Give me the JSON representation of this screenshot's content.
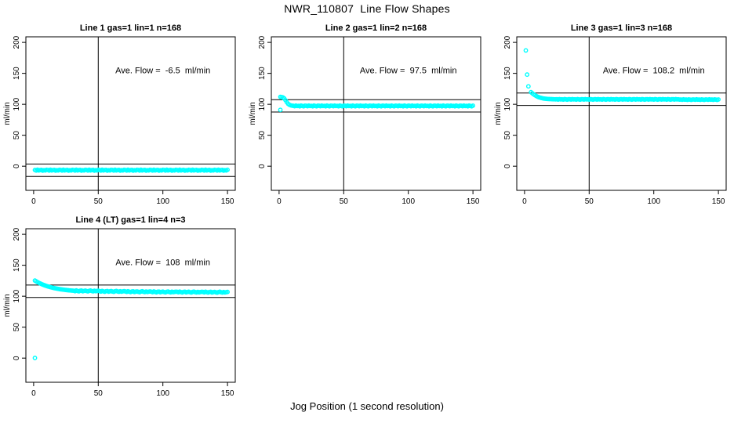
{
  "figure": {
    "title": "NWR_110807  Line Flow Shapes",
    "bottom_xlabel": "Jog Position (1 second resolution)",
    "point_color": "#00FFFF",
    "axis_color": "#000000",
    "background": "#FFFFFF"
  },
  "chart_data": [
    {
      "type": "scatter",
      "title": "Line 1 gas=1 lin=1 n=168",
      "annotation": "Ave. Flow =  -6.5  ml/min",
      "ave_flow_ml_min": -6.5,
      "gas": 1,
      "lin": 1,
      "n": 168,
      "ylabel": "ml/min",
      "xticks": [
        0,
        50,
        100,
        150
      ],
      "yticks": [
        0,
        50,
        100,
        150,
        200
      ],
      "xlim": [
        -6,
        156
      ],
      "ylim": [
        -39,
        209
      ],
      "grid": false,
      "vline_x": 50,
      "hlines": [
        3.5,
        -16.5
      ],
      "series": {
        "x_start": 1,
        "x_step": 1,
        "y": [
          -6.1,
          -7.0,
          -5.7,
          -6.8,
          -6.3,
          -5.9,
          -7.2,
          -6.4,
          -6.9,
          -5.8,
          -6.1,
          -7.0,
          -5.7,
          -6.8,
          -6.3,
          -5.9,
          -7.2,
          -6.4,
          -6.9,
          -5.8,
          -6.1,
          -7.0,
          -5.7,
          -6.8,
          -6.3,
          -5.9,
          -7.2,
          -6.4,
          -6.9,
          -5.8,
          -6.1,
          -7.0,
          -5.7,
          -6.8,
          -6.3,
          -5.9,
          -7.2,
          -6.4,
          -6.9,
          -5.8,
          -6.1,
          -7.0,
          -5.7,
          -6.8,
          -6.3,
          -5.9,
          -7.2,
          -6.4,
          -6.9,
          -5.8,
          -6.1,
          -7.0,
          -5.7,
          -6.8,
          -6.3,
          -5.9,
          -7.2,
          -6.4,
          -6.9,
          -5.8,
          -6.1,
          -7.0,
          -5.7,
          -6.8,
          -6.3,
          -5.9,
          -7.2,
          -6.4,
          -6.9,
          -5.8,
          -6.1,
          -7.0,
          -5.7,
          -6.8,
          -6.3,
          -5.9,
          -7.2,
          -6.4,
          -6.9,
          -5.8,
          -6.1,
          -7.0,
          -5.7,
          -6.8,
          -6.3,
          -5.9,
          -7.2,
          -6.4,
          -6.9,
          -5.8,
          -6.1,
          -7.0,
          -5.7,
          -6.8,
          -6.3,
          -5.9,
          -7.2,
          -6.4,
          -6.9,
          -5.8,
          -6.1,
          -7.0,
          -5.7,
          -6.8,
          -6.3,
          -5.9,
          -7.2,
          -6.4,
          -6.9,
          -5.8,
          -6.1,
          -7.0,
          -5.7,
          -6.8,
          -6.3,
          -5.9,
          -7.2,
          -6.4,
          -6.9,
          -5.8,
          -6.1,
          -7.0,
          -5.7,
          -6.8,
          -6.3,
          -5.9,
          -7.2,
          -6.4,
          -6.9,
          -5.8,
          -6.1,
          -7.0,
          -5.7,
          -6.8,
          -6.3,
          -5.9,
          -7.2,
          -6.4,
          -6.9,
          -5.8,
          -6.1,
          -7.0,
          -5.7,
          -6.8,
          -6.3,
          -5.9,
          -7.2,
          -6.4,
          -6.9,
          -5.8
        ]
      },
      "outliers": []
    },
    {
      "type": "scatter",
      "title": "Line 2 gas=1 lin=2 n=168",
      "annotation": "Ave. Flow =  97.5  ml/min",
      "ave_flow_ml_min": 97.5,
      "gas": 1,
      "lin": 2,
      "n": 168,
      "ylabel": "ml/min",
      "xticks": [
        0,
        50,
        100,
        150
      ],
      "yticks": [
        0,
        50,
        100,
        150,
        200
      ],
      "xlim": [
        -6,
        156
      ],
      "ylim": [
        -39,
        209
      ],
      "grid": false,
      "vline_x": 50,
      "hlines": [
        107.5,
        87.5
      ],
      "series": {
        "x_start": 1,
        "x_step": 1,
        "y": [
          112.0,
          111.7,
          111.0,
          109.5,
          106.5,
          103.2,
          100.8,
          99.2,
          98.3,
          97.8,
          97.6,
          96.9,
          97.9,
          97.2,
          97.5,
          96.8,
          98.0,
          97.3,
          96.7,
          97.8,
          97.6,
          96.9,
          97.9,
          97.2,
          97.5,
          96.8,
          98.0,
          97.3,
          96.7,
          97.8,
          97.6,
          96.9,
          97.9,
          97.2,
          97.5,
          96.8,
          98.0,
          97.3,
          96.7,
          97.8,
          97.6,
          96.9,
          97.9,
          97.2,
          97.5,
          96.8,
          98.0,
          97.3,
          96.7,
          97.8,
          97.6,
          96.9,
          97.9,
          97.2,
          97.5,
          96.8,
          98.0,
          97.3,
          96.7,
          97.8,
          97.6,
          96.9,
          97.9,
          97.2,
          97.5,
          96.8,
          98.0,
          97.3,
          96.7,
          97.8,
          97.6,
          96.9,
          97.9,
          97.2,
          97.5,
          96.8,
          98.0,
          97.3,
          96.7,
          97.8,
          97.6,
          96.9,
          97.9,
          97.2,
          97.5,
          96.8,
          98.0,
          97.3,
          96.7,
          97.8,
          97.6,
          96.9,
          97.9,
          97.2,
          97.5,
          96.8,
          98.0,
          97.3,
          96.7,
          97.8,
          97.6,
          96.9,
          97.9,
          97.2,
          97.5,
          96.8,
          98.0,
          97.3,
          96.7,
          97.8,
          97.6,
          96.9,
          97.9,
          97.2,
          97.5,
          96.8,
          98.0,
          97.3,
          96.7,
          97.8,
          97.6,
          96.9,
          97.9,
          97.2,
          97.5,
          96.8,
          98.0,
          97.3,
          96.7,
          97.8,
          97.6,
          96.9,
          97.9,
          97.2,
          97.5,
          96.8,
          98.0,
          97.3,
          96.7,
          97.8,
          97.6,
          96.9,
          97.9,
          97.2,
          97.5,
          96.8,
          98.0,
          97.3,
          96.7,
          97.8
        ]
      },
      "outliers": [
        [
          1,
          91
        ]
      ]
    },
    {
      "type": "scatter",
      "title": "Line 3 gas=1 lin=3 n=168",
      "annotation": "Ave. Flow =  108.2  ml/min",
      "ave_flow_ml_min": 108.2,
      "gas": 1,
      "lin": 3,
      "n": 168,
      "ylabel": "ml/min",
      "xticks": [
        0,
        50,
        100,
        150
      ],
      "yticks": [
        0,
        50,
        100,
        150,
        200
      ],
      "xlim": [
        -6,
        156
      ],
      "ylim": [
        -39,
        209
      ],
      "grid": false,
      "vline_x": 50,
      "hlines": [
        118.2,
        98.2
      ],
      "series": {
        "x_start": 5,
        "x_step": 1,
        "y": [
          119.6,
          117.8,
          116.2,
          114.8,
          113.5,
          112.4,
          111.5,
          110.8,
          110.2,
          109.7,
          109.3,
          109.0,
          108.8,
          108.6,
          108.5,
          108.4,
          108.3,
          108.2,
          108.1,
          108.0,
          108.2,
          107.7,
          108.4,
          107.9,
          108.1,
          107.6,
          108.3,
          108.0,
          107.5,
          108.2,
          108.2,
          107.7,
          108.4,
          107.9,
          108.1,
          107.6,
          108.3,
          108.0,
          107.5,
          108.2,
          108.2,
          107.7,
          108.4,
          107.9,
          108.1,
          107.6,
          108.3,
          108.0,
          107.5,
          108.2,
          108.2,
          107.7,
          108.4,
          107.9,
          108.1,
          107.6,
          108.3,
          108.0,
          107.5,
          108.2,
          108.2,
          107.7,
          108.4,
          107.9,
          108.1,
          107.6,
          108.3,
          108.0,
          107.5,
          108.2,
          108.2,
          107.7,
          108.4,
          107.9,
          108.1,
          107.6,
          108.3,
          108.0,
          107.5,
          108.2,
          108.2,
          107.7,
          108.4,
          107.9,
          108.1,
          107.6,
          108.3,
          108.0,
          107.5,
          108.2,
          108.2,
          107.7,
          108.4,
          107.9,
          108.1,
          107.6,
          108.3,
          108.0,
          107.5,
          108.2,
          108.2,
          107.7,
          108.4,
          107.9,
          108.1,
          107.6,
          108.3,
          108.0,
          107.5,
          108.2,
          108.2,
          107.7,
          108.4,
          107.9,
          108.1,
          107.6,
          107.8,
          107.3,
          108.0,
          107.5,
          107.7,
          107.2,
          107.9,
          107.6,
          107.1,
          107.8,
          107.8,
          107.3,
          108.0,
          107.5,
          107.7,
          107.2,
          107.9,
          107.6,
          107.1,
          107.8,
          107.8,
          107.3,
          108.0,
          107.5,
          107.7,
          107.2,
          107.9,
          107.6,
          107.1,
          107.8
        ]
      },
      "outliers": [
        [
          1,
          187
        ],
        [
          2,
          148
        ],
        [
          3,
          129
        ]
      ]
    },
    {
      "type": "scatter",
      "title": "Line 4 (LT) gas=1 lin=4 n=3",
      "annotation": "Ave. Flow =  108  ml/min",
      "ave_flow_ml_min": 108,
      "gas": 1,
      "lin": 4,
      "n": 3,
      "ylabel": "ml/min",
      "xticks": [
        0,
        50,
        100,
        150
      ],
      "yticks": [
        0,
        50,
        100,
        150,
        200
      ],
      "xlim": [
        -6,
        156
      ],
      "ylim": [
        -39,
        209
      ],
      "grid": false,
      "vline_x": 50,
      "hlines": [
        118,
        98
      ],
      "series": {
        "x_start": 1,
        "x_step": 1,
        "y": [
          125.3,
          124.0,
          122.8,
          121.7,
          120.7,
          119.7,
          118.8,
          118.0,
          117.2,
          116.5,
          115.8,
          115.2,
          114.6,
          114.1,
          113.6,
          113.1,
          112.7,
          112.3,
          111.9,
          111.5,
          111.2,
          110.9,
          110.6,
          110.3,
          110.1,
          109.8,
          109.6,
          109.4,
          109.2,
          109.0,
          108.9,
          108.2,
          109.3,
          108.5,
          107.9,
          108.8,
          109.1,
          108.0,
          108.6,
          109.0,
          108.3,
          107.8,
          108.7,
          109.2,
          108.4,
          107.9,
          108.8,
          108.1,
          108.5,
          108.9,
          108.2,
          107.5,
          108.6,
          107.8,
          107.2,
          108.1,
          108.4,
          107.3,
          107.9,
          108.3,
          107.6,
          107.1,
          108.0,
          108.5,
          107.7,
          107.2,
          108.1,
          107.4,
          107.8,
          108.2,
          107.7,
          107.0,
          108.1,
          107.3,
          106.7,
          107.6,
          107.9,
          106.8,
          107.4,
          107.8,
          107.1,
          106.6,
          107.5,
          108.0,
          107.2,
          106.7,
          107.6,
          106.9,
          107.3,
          107.7,
          107.3,
          106.6,
          107.7,
          106.9,
          106.3,
          107.2,
          107.5,
          106.4,
          107.0,
          107.4,
          106.7,
          106.2,
          107.1,
          107.6,
          106.8,
          106.3,
          107.2,
          106.5,
          106.9,
          107.3,
          107.1,
          106.4,
          107.5,
          106.7,
          106.1,
          107.0,
          107.3,
          106.2,
          106.8,
          107.2,
          106.5,
          106.0,
          106.9,
          107.4,
          106.6,
          106.1,
          107.0,
          106.3,
          106.7,
          107.1,
          106.9,
          106.2,
          107.3,
          106.5,
          105.9,
          106.8,
          107.1,
          106.0,
          106.6,
          107.0,
          106.3,
          105.8,
          106.7,
          107.2,
          106.4,
          105.9,
          106.8,
          106.1,
          106.5,
          106.9
        ]
      },
      "outliers": [
        [
          1,
          0.3
        ]
      ]
    }
  ]
}
